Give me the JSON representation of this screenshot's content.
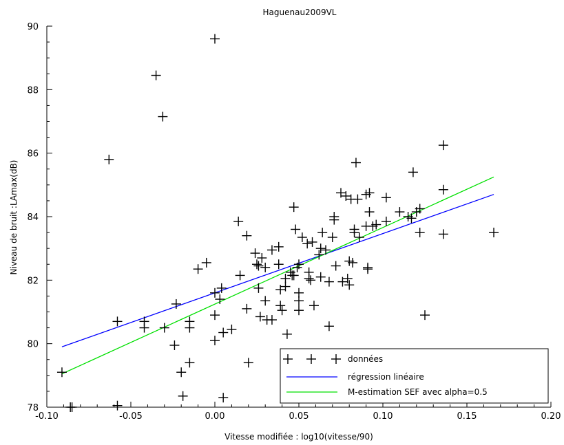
{
  "chart_data": {
    "type": "scatter",
    "title": "Haguenau2009VL",
    "xlabel": "Vitesse modifiée :  log10(vitesse/90)",
    "ylabel": "Niveau de bruit :LAmax(dB)",
    "xlim": [
      -0.1,
      0.2
    ],
    "ylim": [
      78,
      90
    ],
    "x_ticks": [
      "-0.10",
      "-0.05",
      "0.00",
      "0.05",
      "0.10",
      "0.15",
      "0.20"
    ],
    "y_ticks": [
      "78",
      "80",
      "82",
      "84",
      "86",
      "88",
      "90"
    ],
    "legend_position": "bottom-right",
    "grid": false,
    "series": [
      {
        "name": "données",
        "kind": "scatter",
        "marker": "plus",
        "color": "#000000",
        "points": [
          [
            -0.091,
            79.1
          ],
          [
            -0.086,
            78.0
          ],
          [
            -0.085,
            78.0
          ],
          [
            -0.063,
            85.8
          ],
          [
            -0.058,
            80.7
          ],
          [
            -0.058,
            78.05
          ],
          [
            -0.042,
            80.7
          ],
          [
            -0.042,
            80.5
          ],
          [
            -0.035,
            88.45
          ],
          [
            -0.031,
            87.15
          ],
          [
            -0.03,
            80.5
          ],
          [
            -0.024,
            79.95
          ],
          [
            -0.023,
            81.25
          ],
          [
            -0.02,
            79.1
          ],
          [
            -0.019,
            78.35
          ],
          [
            -0.015,
            80.7
          ],
          [
            -0.015,
            80.5
          ],
          [
            -0.015,
            79.4
          ],
          [
            -0.01,
            82.35
          ],
          [
            -0.005,
            82.55
          ],
          [
            0.0,
            80.9
          ],
          [
            0.0,
            81.6
          ],
          [
            0.0,
            80.1
          ],
          [
            0.0,
            89.6
          ],
          [
            0.003,
            81.4
          ],
          [
            0.004,
            81.75
          ],
          [
            0.005,
            80.35
          ],
          [
            0.005,
            78.3
          ],
          [
            0.01,
            80.45
          ],
          [
            0.014,
            83.85
          ],
          [
            0.015,
            82.15
          ],
          [
            0.019,
            83.4
          ],
          [
            0.019,
            81.1
          ],
          [
            0.02,
            79.4
          ],
          [
            0.024,
            82.85
          ],
          [
            0.025,
            82.5
          ],
          [
            0.026,
            82.45
          ],
          [
            0.026,
            81.75
          ],
          [
            0.027,
            80.85
          ],
          [
            0.028,
            82.7
          ],
          [
            0.03,
            82.4
          ],
          [
            0.03,
            81.35
          ],
          [
            0.031,
            80.75
          ],
          [
            0.034,
            80.75
          ],
          [
            0.034,
            82.95
          ],
          [
            0.038,
            83.05
          ],
          [
            0.038,
            82.5
          ],
          [
            0.039,
            81.7
          ],
          [
            0.039,
            81.2
          ],
          [
            0.04,
            81.05
          ],
          [
            0.042,
            82.05
          ],
          [
            0.042,
            81.8
          ],
          [
            0.043,
            80.3
          ],
          [
            0.045,
            82.25
          ],
          [
            0.046,
            82.15
          ],
          [
            0.047,
            82.15
          ],
          [
            0.047,
            84.3
          ],
          [
            0.048,
            83.6
          ],
          [
            0.049,
            82.4
          ],
          [
            0.05,
            82.5
          ],
          [
            0.05,
            81.6
          ],
          [
            0.05,
            81.35
          ],
          [
            0.05,
            81.05
          ],
          [
            0.052,
            83.35
          ],
          [
            0.055,
            83.15
          ],
          [
            0.056,
            82.25
          ],
          [
            0.056,
            82.05
          ],
          [
            0.057,
            82.0
          ],
          [
            0.058,
            83.2
          ],
          [
            0.059,
            81.2
          ],
          [
            0.062,
            82.8
          ],
          [
            0.063,
            83.0
          ],
          [
            0.063,
            82.1
          ],
          [
            0.064,
            83.5
          ],
          [
            0.066,
            82.95
          ],
          [
            0.068,
            81.95
          ],
          [
            0.068,
            80.55
          ],
          [
            0.07,
            83.35
          ],
          [
            0.071,
            84.0
          ],
          [
            0.071,
            83.9
          ],
          [
            0.072,
            82.45
          ],
          [
            0.075,
            84.75
          ],
          [
            0.076,
            81.95
          ],
          [
            0.078,
            84.65
          ],
          [
            0.079,
            82.05
          ],
          [
            0.08,
            82.6
          ],
          [
            0.08,
            81.85
          ],
          [
            0.082,
            82.55
          ],
          [
            0.081,
            84.55
          ],
          [
            0.083,
            83.6
          ],
          [
            0.083,
            83.5
          ],
          [
            0.084,
            85.7
          ],
          [
            0.085,
            84.55
          ],
          [
            0.086,
            83.35
          ],
          [
            0.09,
            84.7
          ],
          [
            0.09,
            83.7
          ],
          [
            0.091,
            82.4
          ],
          [
            0.091,
            82.35
          ],
          [
            0.092,
            84.75
          ],
          [
            0.092,
            84.15
          ],
          [
            0.094,
            83.7
          ],
          [
            0.096,
            83.75
          ],
          [
            0.102,
            84.6
          ],
          [
            0.102,
            83.85
          ],
          [
            0.11,
            84.15
          ],
          [
            0.115,
            84.0
          ],
          [
            0.117,
            83.95
          ],
          [
            0.118,
            85.4
          ],
          [
            0.12,
            84.15
          ],
          [
            0.122,
            84.25
          ],
          [
            0.122,
            83.5
          ],
          [
            0.125,
            80.9
          ],
          [
            0.136,
            86.25
          ],
          [
            0.136,
            84.85
          ],
          [
            0.136,
            83.45
          ],
          [
            0.166,
            83.5
          ]
        ]
      },
      {
        "name": "régression linéaire",
        "kind": "line",
        "color": "#0000ff",
        "points": [
          [
            -0.091,
            79.9
          ],
          [
            0.166,
            84.7
          ]
        ]
      },
      {
        "name": "M-estimation SEF avec alpha=0.5",
        "kind": "line",
        "color": "#00e000",
        "points": [
          [
            -0.091,
            79.05
          ],
          [
            0.166,
            85.25
          ]
        ]
      }
    ]
  }
}
